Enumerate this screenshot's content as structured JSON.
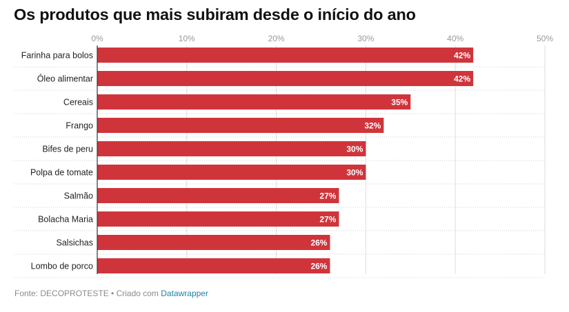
{
  "title": "Os produtos que mais subiram desde o início do ano",
  "footer": {
    "source": "Fonte: DECOPROTESTE",
    "separator": " • ",
    "created_with": "Criado com ",
    "tool": "Datawrapper"
  },
  "colors": {
    "bar": "#d0343b",
    "gridline": "#dddddd",
    "axis_text": "#999999",
    "label_text": "#222222",
    "value_text": "#ffffff",
    "link": "#1d81a2"
  },
  "chart_data": {
    "type": "bar",
    "orientation": "horizontal",
    "categories": [
      "Farinha para bolos",
      "Óleo alimentar",
      "Cereais",
      "Frango",
      "Bifes de peru",
      "Polpa de tomate",
      "Salmão",
      "Bolacha Maria",
      "Salsichas",
      "Lombo de porco"
    ],
    "values": [
      42,
      42,
      35,
      32,
      30,
      30,
      27,
      27,
      26,
      26
    ],
    "value_labels": [
      "42%",
      "42%",
      "35%",
      "32%",
      "30%",
      "30%",
      "27%",
      "27%",
      "26%",
      "26%"
    ],
    "xlim": [
      0,
      50
    ],
    "xticks": [
      0,
      10,
      20,
      30,
      40,
      50
    ],
    "xtick_labels": [
      "0%",
      "10%",
      "20%",
      "30%",
      "40%",
      "50%"
    ],
    "grid": true,
    "axis_position": "top"
  }
}
